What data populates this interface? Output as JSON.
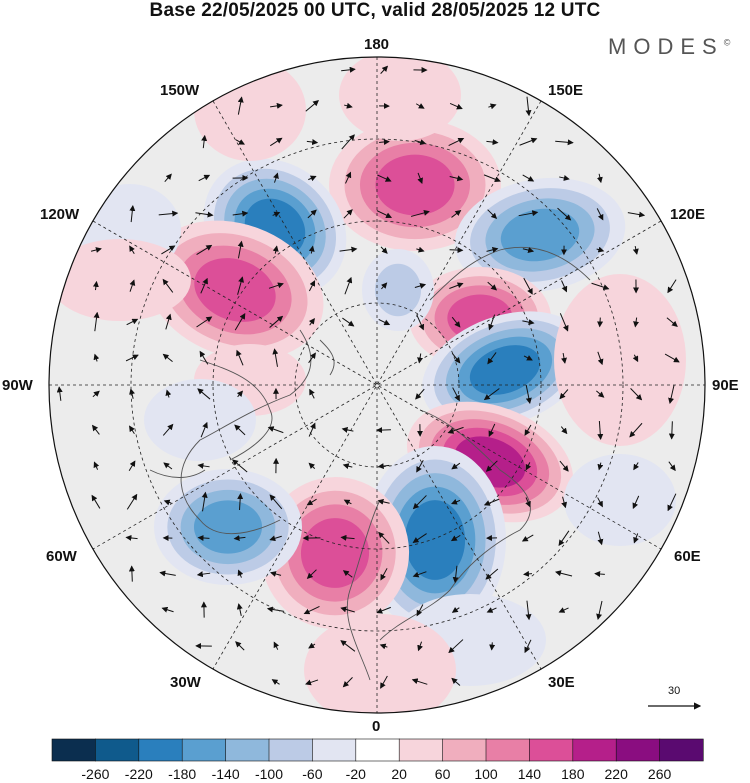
{
  "title": "Base 22/05/2025 00 UTC, valid 28/05/2025 12 UTC",
  "brand": "MODES",
  "brand_mark": "©",
  "longitude_labels": {
    "top": "180",
    "top_left": "150W",
    "top_right": "150E",
    "upper_left": "120W",
    "upper_right": "120E",
    "left": "90W",
    "right": "90E",
    "lower_left": "60W",
    "lower_right": "60E",
    "bottom_left": "30W",
    "bottom_right": "30E",
    "bottom": "0"
  },
  "reference_vector": "30",
  "colorbar": {
    "ticks": [
      "-260",
      "-220",
      "-180",
      "-140",
      "-100",
      "-60",
      "-20",
      "20",
      "60",
      "100",
      "140",
      "180",
      "220",
      "260"
    ],
    "colors": [
      "#0b2e4f",
      "#0f5a8c",
      "#2a7fbd",
      "#5a9fd0",
      "#8fb8dc",
      "#bccbe6",
      "#e2e5f2",
      "#ffffff",
      "#f7d5dc",
      "#f0aebe",
      "#e87fa6",
      "#dc4f98",
      "#b51f8a",
      "#8a0d80",
      "#5a0a70"
    ]
  },
  "colors": {
    "land_background": "#ececec",
    "coast": "#555555",
    "grid": "#222222"
  }
}
